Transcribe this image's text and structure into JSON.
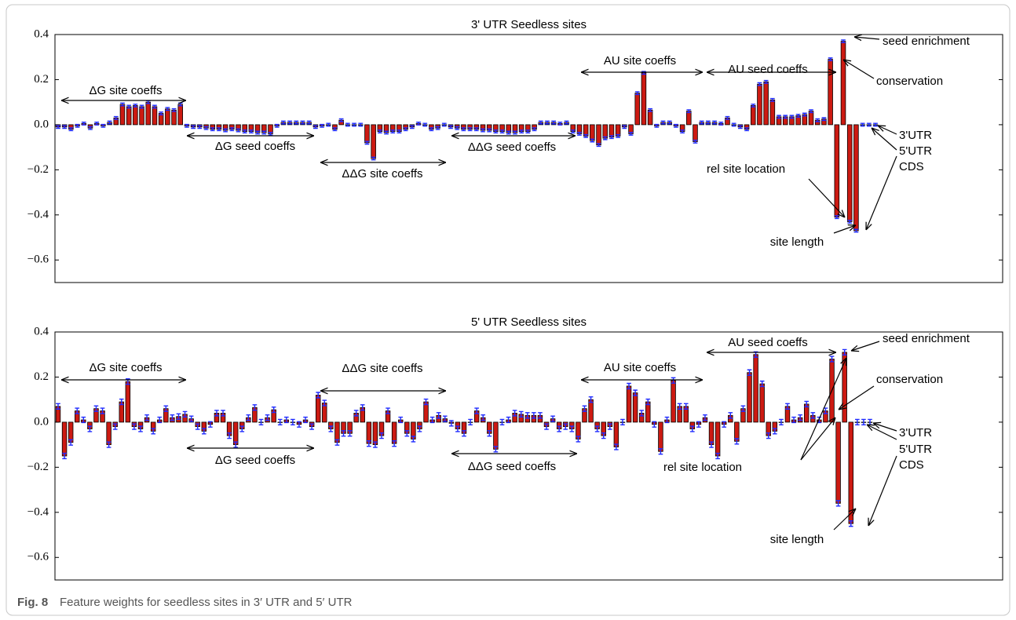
{
  "chart_data": [
    {
      "type": "bar",
      "title": "3' UTR Seedless sites",
      "color": "#cc1a12",
      "error_color": "#1f2bff",
      "ylim": [
        -0.7,
        0.4
      ],
      "yticks": [
        {
          "value": -0.6,
          "label": "−0.6"
        },
        {
          "value": -0.4,
          "label": "−0.4"
        },
        {
          "value": -0.2,
          "label": "−0.2"
        },
        {
          "value": 0,
          "label": "0.0"
        },
        0.2,
        0.4
      ],
      "error": 0.006,
      "values": [
        -0.01,
        -0.01,
        -0.02,
        -0.005,
        0.005,
        -0.015,
        0.005,
        -0.005,
        0.01,
        0.03,
        0.09,
        0.08,
        0.085,
        0.08,
        0.1,
        0.08,
        0.05,
        0.07,
        0.065,
        0.09,
        -0.005,
        -0.01,
        -0.01,
        -0.015,
        -0.02,
        -0.02,
        -0.025,
        -0.02,
        -0.025,
        -0.03,
        -0.03,
        -0.035,
        -0.035,
        -0.04,
        -0.005,
        0.01,
        0.01,
        0.01,
        0.01,
        0.01,
        -0.01,
        -0.005,
        0.0,
        -0.02,
        0.02,
        0.0,
        0.0,
        0.0,
        -0.08,
        -0.15,
        -0.03,
        -0.035,
        -0.03,
        -0.03,
        -0.02,
        -0.01,
        0.005,
        0.0,
        -0.02,
        -0.015,
        0.0,
        -0.01,
        -0.015,
        -0.02,
        -0.02,
        -0.02,
        -0.025,
        -0.025,
        -0.03,
        -0.03,
        -0.035,
        -0.035,
        -0.03,
        -0.03,
        -0.02,
        0.01,
        0.01,
        0.01,
        0.005,
        0.01,
        -0.03,
        -0.04,
        -0.05,
        -0.07,
        -0.09,
        -0.06,
        -0.055,
        -0.05,
        -0.01,
        -0.04,
        0.14,
        0.23,
        0.065,
        -0.005,
        0.01,
        0.01,
        -0.005,
        -0.03,
        0.06,
        -0.075,
        0.01,
        0.01,
        0.01,
        0.005,
        0.03,
        0.0,
        -0.01,
        -0.02,
        0.085,
        0.18,
        0.19,
        0.11,
        0.035,
        0.035,
        0.035,
        0.04,
        0.045,
        0.06,
        0.02,
        0.025,
        0.29,
        -0.41,
        0.37,
        -0.43,
        -0.47,
        0.0,
        0.0,
        0.0
      ],
      "annotations": [
        "ΔG site coeffs",
        "ΔG seed coeffs",
        "ΔΔG site coeffs",
        "ΔΔG seed coeffs",
        "AU site coeffs",
        "AU seed coeffs",
        "seed enrichment",
        "conservation",
        "3'UTR",
        "5'UTR",
        "CDS",
        "rel site location",
        "site length"
      ]
    },
    {
      "type": "bar",
      "title": "5' UTR Seedless sites",
      "color": "#cc1a12",
      "error_color": "#1f2bff",
      "ylim": [
        -0.7,
        0.4
      ],
      "yticks": [
        {
          "value": -0.6,
          "label": "−0.6"
        },
        {
          "value": -0.4,
          "label": "−0.4"
        },
        {
          "value": -0.2,
          "label": "−0.2"
        },
        {
          "value": 0,
          "label": "0.0"
        },
        0.2,
        0.4
      ],
      "error": 0.012,
      "values": [
        0.07,
        -0.15,
        -0.09,
        0.05,
        0.01,
        -0.03,
        0.06,
        0.05,
        -0.1,
        -0.02,
        0.09,
        0.18,
        -0.02,
        -0.03,
        0.02,
        -0.04,
        0.01,
        0.06,
        0.02,
        0.025,
        0.035,
        0.015,
        -0.02,
        -0.04,
        -0.01,
        0.04,
        0.04,
        -0.06,
        -0.1,
        -0.03,
        0.02,
        0.065,
        0.0,
        0.02,
        0.055,
        0.0,
        0.01,
        0.0,
        -0.01,
        0.01,
        -0.02,
        0.12,
        0.085,
        -0.03,
        -0.09,
        -0.05,
        -0.05,
        0.04,
        0.065,
        -0.095,
        -0.1,
        -0.06,
        0.05,
        -0.095,
        0.01,
        -0.05,
        -0.075,
        -0.03,
        0.09,
        0.01,
        0.03,
        0.015,
        -0.005,
        -0.03,
        -0.05,
        0.0,
        0.05,
        0.02,
        -0.05,
        -0.12,
        0.0,
        0.01,
        0.04,
        0.035,
        0.03,
        0.03,
        0.03,
        -0.02,
        0.015,
        -0.03,
        -0.02,
        -0.03,
        -0.075,
        0.06,
        0.1,
        -0.03,
        -0.06,
        -0.02,
        -0.11,
        0.0,
        0.16,
        0.13,
        0.04,
        0.09,
        -0.01,
        -0.13,
        0.01,
        0.185,
        0.07,
        0.07,
        -0.03,
        -0.01,
        0.02,
        -0.1,
        -0.15,
        -0.01,
        0.03,
        -0.085,
        0.06,
        0.22,
        0.3,
        0.17,
        -0.06,
        -0.04,
        0.0,
        0.07,
        0.01,
        0.02,
        0.08,
        0.03,
        0.01,
        0.05,
        0.28,
        -0.36,
        0.31,
        -0.45,
        0.0,
        0.0,
        0.0
      ],
      "annotations": [
        "ΔG site coeffs",
        "ΔG seed coeffs",
        "ΔΔG site coeffs",
        "ΔΔG seed coeffs",
        "AU site coeffs",
        "AU seed coeffs",
        "seed enrichment",
        "conservation",
        "3'UTR",
        "5'UTR",
        "CDS",
        "rel site location",
        "site length"
      ]
    }
  ],
  "caption": {
    "label": "Fig. 8",
    "text": "Feature weights for seedless sites in 3′ UTR and 5′ UTR"
  }
}
